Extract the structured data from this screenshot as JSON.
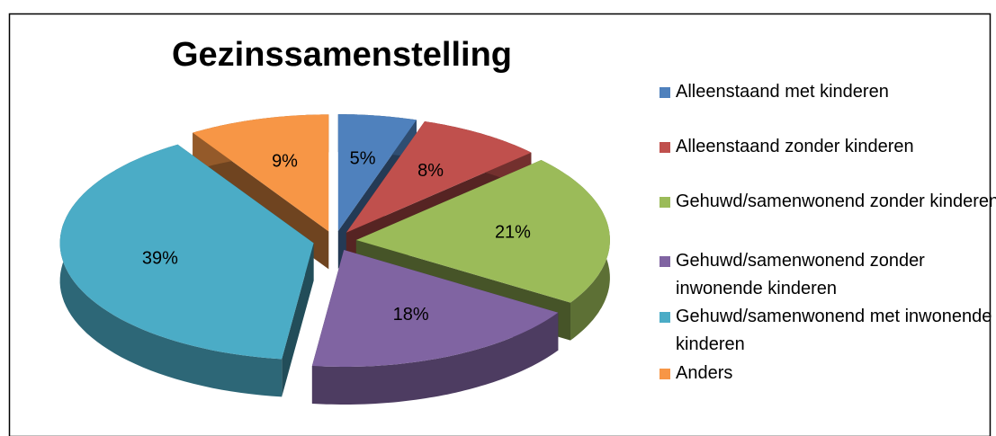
{
  "chart_data": {
    "type": "pie",
    "title": "Gezinssamenstelling",
    "categories": [
      "Alleenstaand met kinderen",
      "Alleenstaand zonder kinderen",
      "Gehuwd/samenwonend zonder kinderen",
      "Gehuwd/samenwonend zonder inwonende kinderen",
      "Gehuwd/samenwonend met inwonende kinderen",
      "Anders"
    ],
    "values": [
      5,
      8,
      21,
      18,
      39,
      9
    ],
    "value_labels": [
      "5%",
      "8%",
      "21%",
      "18%",
      "39%",
      "9%"
    ],
    "colors": [
      "#4f81bd",
      "#c0504d",
      "#9bbb59",
      "#8064a2",
      "#4bacc6",
      "#f79646"
    ],
    "legend": "right"
  }
}
